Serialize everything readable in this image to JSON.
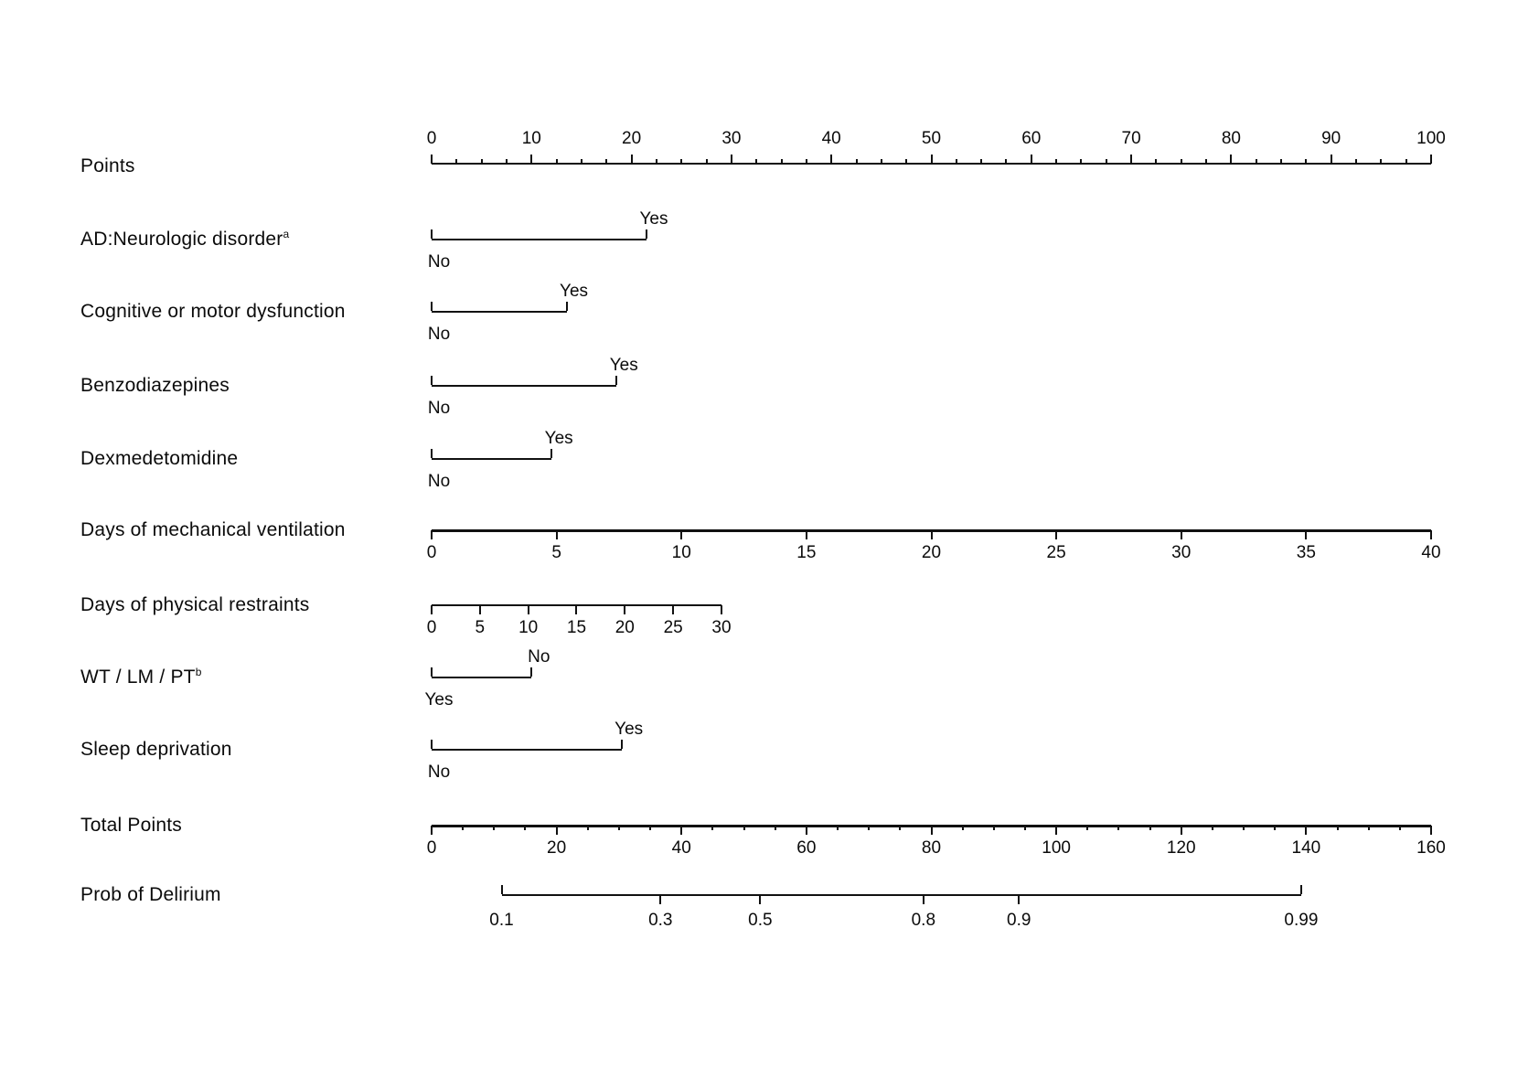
{
  "chart_data": {
    "type": "nomogram",
    "title": "",
    "points_axis_range": [
      0,
      100
    ],
    "footnotes": [
      "a",
      "b"
    ],
    "rows": [
      {
        "id": "points",
        "label": "Points",
        "kind": "scale",
        "side": "top",
        "thick": false,
        "value_min": 0,
        "value_max": 100,
        "points_min": 0,
        "points_max": 100,
        "tick_values": [
          0,
          10,
          20,
          30,
          40,
          50,
          60,
          70,
          80,
          90,
          100
        ],
        "minor_step": 2.5
      },
      {
        "id": "ad-neurologic-disorder",
        "label": "AD:Neurologic disorder",
        "label_sup": "a",
        "kind": "binary",
        "low": {
          "label": "No",
          "points": 0
        },
        "high": {
          "label": "Yes",
          "points": 21.5
        }
      },
      {
        "id": "cognitive-or-motor-dysfunction",
        "label": "Cognitive or motor dysfunction",
        "label_sup": "",
        "kind": "binary",
        "low": {
          "label": "No",
          "points": 0
        },
        "high": {
          "label": "Yes",
          "points": 13.5
        }
      },
      {
        "id": "benzodiazepines",
        "label": "Benzodiazepines",
        "label_sup": "",
        "kind": "binary",
        "low": {
          "label": "No",
          "points": 0
        },
        "high": {
          "label": "Yes",
          "points": 18.5
        }
      },
      {
        "id": "dexmedetomidine",
        "label": "Dexmedetomidine",
        "label_sup": "",
        "kind": "binary",
        "low": {
          "label": "No",
          "points": 0
        },
        "high": {
          "label": "Yes",
          "points": 12
        }
      },
      {
        "id": "days-of-mechanical-ventilation",
        "label": "Days of mechanical ventilation",
        "kind": "scale",
        "side": "bottom",
        "thick": true,
        "value_min": 0,
        "value_max": 40,
        "points_min": 0,
        "points_max": 100,
        "tick_values": [
          0,
          5,
          10,
          15,
          20,
          25,
          30,
          35,
          40
        ],
        "minor_step": 0
      },
      {
        "id": "days-of-physical-restraints",
        "label": "Days of physical restraints",
        "kind": "scale",
        "side": "bottom",
        "thick": false,
        "value_min": 0,
        "value_max": 30,
        "points_min": 0,
        "points_max": 29,
        "tick_values": [
          0,
          5,
          10,
          15,
          20,
          25,
          30
        ],
        "minor_step": 0
      },
      {
        "id": "wt-lm-pt",
        "label": "WT / LM / PT",
        "label_sup": "b",
        "kind": "binary",
        "low": {
          "label": "Yes",
          "points": 0
        },
        "high": {
          "label": "No",
          "points": 10
        }
      },
      {
        "id": "sleep-deprivation",
        "label": "Sleep deprivation",
        "label_sup": "",
        "kind": "binary",
        "low": {
          "label": "No",
          "points": 0
        },
        "high": {
          "label": "Yes",
          "points": 19
        }
      },
      {
        "id": "total-points",
        "label": "Total Points",
        "kind": "scale",
        "side": "bottom",
        "thick": true,
        "value_min": 0,
        "value_max": 160,
        "points_min": 0,
        "points_max": 100,
        "tick_values": [
          0,
          20,
          40,
          60,
          80,
          100,
          120,
          140,
          160
        ],
        "minor_step": 5
      },
      {
        "id": "prob-of-delirium",
        "label": "Prob of Delirium",
        "kind": "prob",
        "scale": "logit",
        "points_min": 7,
        "points_max": 87,
        "tick_labels": [
          "0.1",
          "0.3",
          "0.5",
          "0.8",
          "0.9",
          "0.99"
        ],
        "tick_values": [
          0.1,
          0.3,
          0.5,
          0.8,
          0.9,
          0.99
        ]
      }
    ]
  }
}
